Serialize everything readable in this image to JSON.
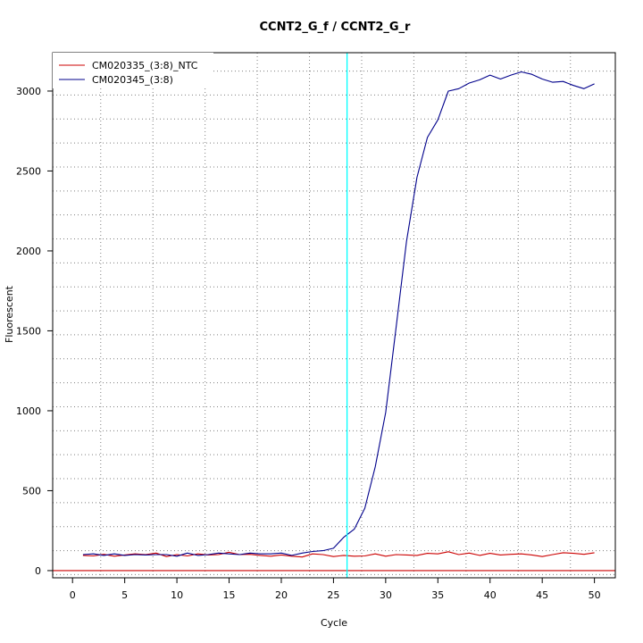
{
  "chart_data": {
    "type": "line",
    "title": "CCNT2_G_f / CCNT2_G_r",
    "xlabel": "Cycle",
    "ylabel": "Fluorescent",
    "xlim": [
      -1.9,
      52.0
    ],
    "ylim": [
      -45,
      3240
    ],
    "xticks": [
      0,
      5,
      10,
      15,
      20,
      25,
      30,
      35,
      40,
      45,
      50
    ],
    "yticks": [
      0,
      500,
      1000,
      1500,
      2000,
      2500,
      3000
    ],
    "grid": true,
    "grid_x": [
      2.7,
      7.7,
      12.7,
      17.7,
      22.7,
      27.7,
      32.7,
      37.7,
      42.7,
      47.7
    ],
    "grid_y": [
      -25,
      125,
      275,
      425,
      575,
      725,
      875,
      1025,
      1175,
      1325,
      1475,
      1625,
      1775,
      1925,
      2075,
      2225,
      2375,
      2525,
      2675,
      2825,
      2975,
      3125
    ],
    "threshold_y": 0,
    "threshold_color": "#cc0000",
    "ct_line_x": 26.3,
    "ct_line_color": "#00ffff",
    "legend_position": "top-left",
    "series": [
      {
        "name": "CM020335_(3:8)_NTC",
        "color": "#cc0000",
        "x": [
          1,
          2,
          3,
          4,
          5,
          6,
          7,
          8,
          9,
          10,
          11,
          12,
          13,
          14,
          15,
          16,
          17,
          18,
          19,
          20,
          21,
          22,
          23,
          24,
          25,
          26,
          27,
          28,
          29,
          30,
          31,
          32,
          33,
          34,
          35,
          36,
          37,
          38,
          39,
          40,
          41,
          42,
          43,
          44,
          45,
          46,
          47,
          48,
          49,
          50
        ],
        "y": [
          95,
          92,
          102,
          90,
          98,
          105,
          100,
          110,
          88,
          100,
          92,
          105,
          98,
          100,
          115,
          100,
          102,
          95,
          90,
          98,
          90,
          85,
          105,
          100,
          88,
          95,
          90,
          92,
          105,
          90,
          100,
          98,
          95,
          108,
          105,
          118,
          100,
          110,
          95,
          108,
          98,
          102,
          105,
          98,
          88,
          100,
          112,
          108,
          102,
          112
        ]
      },
      {
        "name": "CM020345_(3:8)",
        "color": "#00008b",
        "x": [
          1,
          2,
          3,
          4,
          5,
          6,
          7,
          8,
          9,
          10,
          11,
          12,
          13,
          14,
          15,
          16,
          17,
          18,
          19,
          20,
          21,
          22,
          23,
          24,
          25,
          26,
          27,
          28,
          29,
          30,
          31,
          32,
          33,
          34,
          35,
          36,
          37,
          38,
          39,
          40,
          41,
          42,
          43,
          44,
          45,
          46,
          47,
          48,
          49,
          50
        ],
        "y": [
          100,
          105,
          95,
          105,
          95,
          100,
          98,
          100,
          100,
          90,
          110,
          95,
          100,
          110,
          105,
          100,
          110,
          105,
          105,
          110,
          95,
          110,
          120,
          125,
          140,
          210,
          260,
          390,
          650,
          990,
          1520,
          2060,
          2460,
          2710,
          2820,
          3000,
          3015,
          3050,
          3070,
          3100,
          3075,
          3100,
          3120,
          3105,
          3075,
          3055,
          3060,
          3035,
          3015,
          3045
        ]
      }
    ]
  }
}
